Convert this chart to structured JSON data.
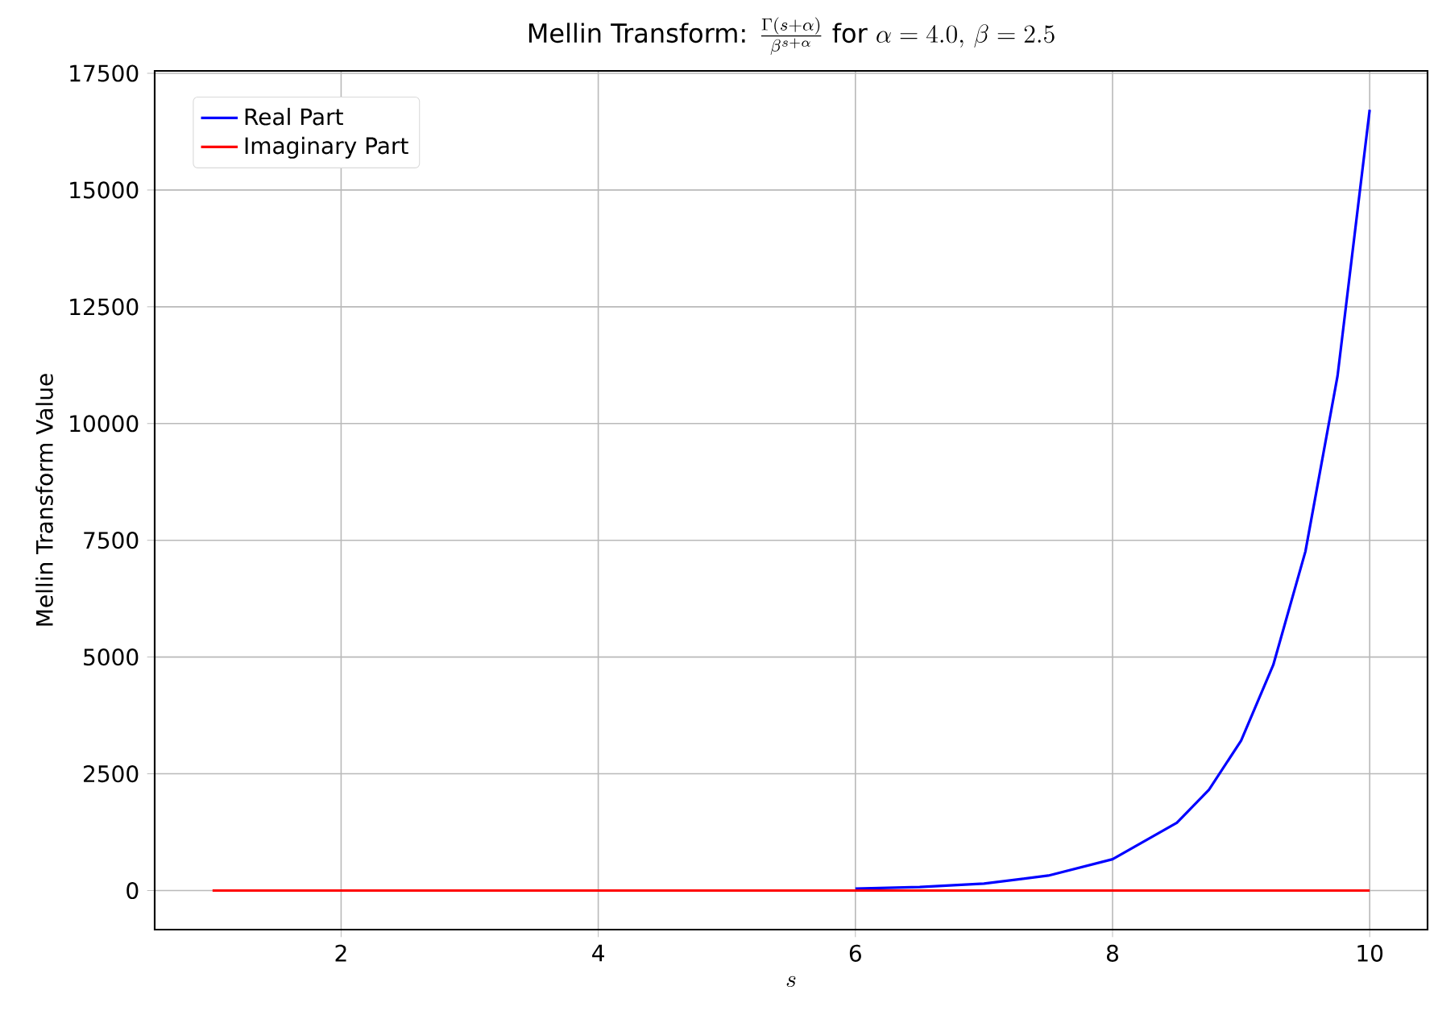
{
  "chart_data": {
    "type": "line",
    "title": "\\text{Mellin Transform: }\\frac{\\Gamma(s+\\alpha)}{\\beta^{s+\\alpha}}\\text{ for }\\alpha=4.0,\\,\\beta=2.5",
    "xlabel": "s",
    "ylabel": "Mellin Transform Value",
    "x": [
      1,
      2,
      3,
      4,
      5,
      6,
      6.5,
      7,
      7.5,
      8,
      8.5,
      8.75,
      9,
      9.25,
      9.5,
      9.75,
      10
    ],
    "series": [
      {
        "name": "Real Part",
        "color": "#0000ff",
        "values": [
          null,
          null,
          null,
          null,
          null,
          40,
          75,
          150,
          320,
          670,
          1450,
          2160,
          3210,
          4830,
          7260,
          11020,
          16720
        ]
      },
      {
        "name": "Imaginary Part",
        "color": "#ff0000",
        "values": [
          0,
          0,
          0,
          0,
          0,
          0,
          0,
          0,
          0,
          0,
          0,
          0,
          0,
          0,
          0,
          0,
          0
        ]
      }
    ],
    "xlim": [
      0.55,
      10.45
    ],
    "ylim": [
      -836,
      17552
    ],
    "xticks": [
      2,
      4,
      6,
      8,
      10
    ],
    "yticks": [
      0,
      2500,
      5000,
      7500,
      10000,
      12500,
      15000,
      17500
    ],
    "grid": true,
    "legend": "top left",
    "line_style": "solid",
    "marker": "none"
  }
}
